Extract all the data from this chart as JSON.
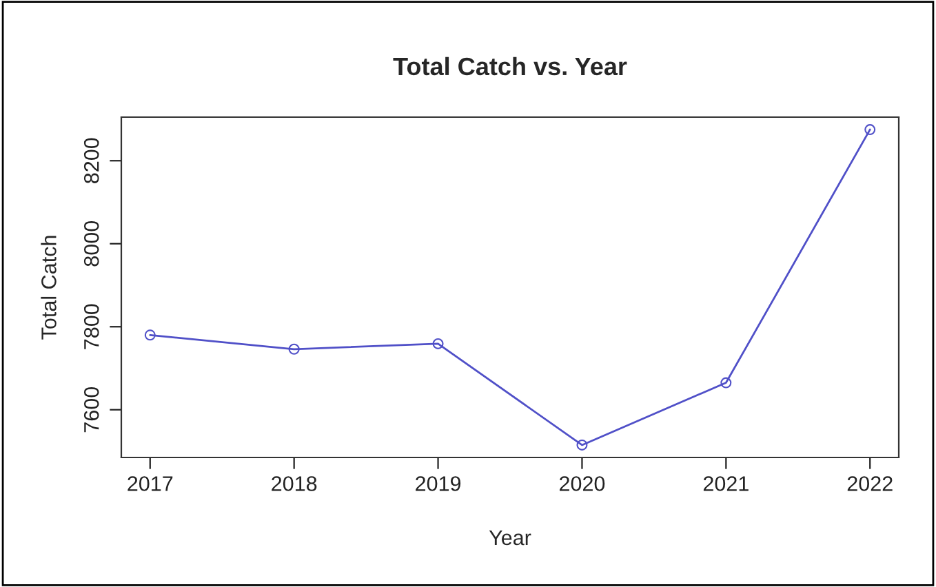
{
  "chart_data": {
    "type": "line",
    "title": "Total Catch vs. Year",
    "xlabel": "Year",
    "ylabel": "Total Catch",
    "x": [
      2017,
      2018,
      2019,
      2020,
      2021,
      2022
    ],
    "series": [
      {
        "color": "#5050c8",
        "values": [
          7780,
          7746,
          7759,
          7515,
          7665,
          8275
        ]
      }
    ],
    "xlim": [
      2016.8,
      2022.2
    ],
    "xticks": [
      2017,
      2018,
      2019,
      2020,
      2021,
      2022
    ],
    "ylim": [
      7485,
      8305
    ],
    "yticks": [
      7600,
      7800,
      8000,
      8200
    ],
    "marker": "circle",
    "line_style": "solid",
    "grid": false
  }
}
